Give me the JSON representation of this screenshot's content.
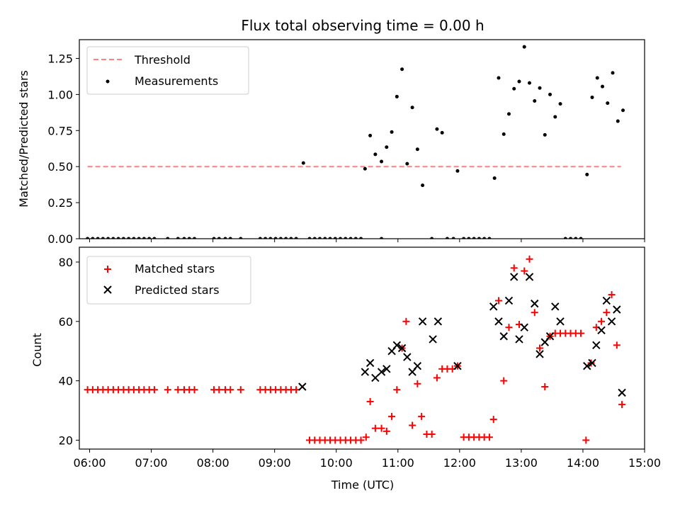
{
  "chart_data": [
    {
      "type": "scatter",
      "title": "Flux total observing time = 0.00 h",
      "xlabel": "",
      "ylabel": "Matched/Predicted stars",
      "xlim": [
        "05:50",
        "15:00"
      ],
      "ylim": [
        0,
        1.38
      ],
      "xticks": [
        "06:00",
        "07:00",
        "08:00",
        "09:00",
        "10:00",
        "11:00",
        "12:00",
        "13:00",
        "14:00",
        "15:00"
      ],
      "yticks": [
        "0.00",
        "0.25",
        "0.50",
        "0.75",
        "1.00",
        "1.25"
      ],
      "legend_position": "upper-left",
      "series": [
        {
          "name": "Threshold",
          "kind": "dashed-line",
          "color": "#ff8080",
          "x": [
            "05:58",
            "14:37"
          ],
          "y": [
            0.5,
            0.5
          ]
        },
        {
          "name": "Measurements",
          "kind": "points",
          "color": "#000000",
          "points": [
            [
              "05:58",
              0
            ],
            [
              "06:03",
              0
            ],
            [
              "06:08",
              0
            ],
            [
              "06:13",
              0
            ],
            [
              "06:18",
              0
            ],
            [
              "06:23",
              0
            ],
            [
              "06:28",
              0
            ],
            [
              "06:33",
              0
            ],
            [
              "06:38",
              0
            ],
            [
              "06:43",
              0
            ],
            [
              "06:48",
              0
            ],
            [
              "06:53",
              0
            ],
            [
              "06:58",
              0
            ],
            [
              "07:03",
              0
            ],
            [
              "07:16",
              0
            ],
            [
              "07:26",
              0
            ],
            [
              "07:32",
              0
            ],
            [
              "07:37",
              0
            ],
            [
              "07:42",
              0
            ],
            [
              "08:01",
              0
            ],
            [
              "08:06",
              0
            ],
            [
              "08:12",
              0
            ],
            [
              "08:17",
              0
            ],
            [
              "08:27",
              0
            ],
            [
              "08:46",
              0
            ],
            [
              "08:51",
              0
            ],
            [
              "08:56",
              0
            ],
            [
              "09:01",
              0
            ],
            [
              "09:06",
              0
            ],
            [
              "09:11",
              0
            ],
            [
              "09:16",
              0
            ],
            [
              "09:21",
              0
            ],
            [
              "09:34",
              0
            ],
            [
              "09:39",
              0
            ],
            [
              "09:44",
              0
            ],
            [
              "09:49",
              0
            ],
            [
              "09:54",
              0
            ],
            [
              "09:59",
              0
            ],
            [
              "10:04",
              0
            ],
            [
              "10:09",
              0
            ],
            [
              "10:14",
              0
            ],
            [
              "10:19",
              0
            ],
            [
              "10:24",
              0
            ],
            [
              "10:44",
              0
            ],
            [
              "11:33",
              0
            ],
            [
              "11:48",
              0
            ],
            [
              "11:54",
              0
            ],
            [
              "12:04",
              0
            ],
            [
              "12:09",
              0
            ],
            [
              "12:14",
              0
            ],
            [
              "12:19",
              0
            ],
            [
              "12:24",
              0
            ],
            [
              "12:29",
              0
            ],
            [
              "13:43",
              0
            ],
            [
              "13:48",
              0
            ],
            [
              "13:53",
              0
            ],
            [
              "13:58",
              0
            ],
            [
              "09:28",
              0.525
            ],
            [
              "10:28",
              0.485
            ],
            [
              "10:33",
              0.715
            ],
            [
              "10:38",
              0.585
            ],
            [
              "10:44",
              0.535
            ],
            [
              "10:49",
              0.635
            ],
            [
              "10:54",
              0.74
            ],
            [
              "10:59",
              0.985
            ],
            [
              "11:04",
              1.175
            ],
            [
              "11:09",
              0.52
            ],
            [
              "11:14",
              0.91
            ],
            [
              "11:19",
              0.62
            ],
            [
              "11:24",
              0.37
            ],
            [
              "11:38",
              0.76
            ],
            [
              "11:43",
              0.735
            ],
            [
              "11:58",
              0.47
            ],
            [
              "12:34",
              0.42
            ],
            [
              "12:38",
              1.115
            ],
            [
              "12:43",
              0.725
            ],
            [
              "12:48",
              0.865
            ],
            [
              "12:53",
              1.04
            ],
            [
              "12:58",
              1.09
            ],
            [
              "13:03",
              1.33
            ],
            [
              "13:08",
              1.08
            ],
            [
              "13:13",
              0.955
            ],
            [
              "13:18",
              1.045
            ],
            [
              "13:23",
              0.72
            ],
            [
              "13:28",
              1.0
            ],
            [
              "13:33",
              0.845
            ],
            [
              "13:38",
              0.935
            ],
            [
              "14:04",
              0.445
            ],
            [
              "14:09",
              0.98
            ],
            [
              "14:14",
              1.115
            ],
            [
              "14:19",
              1.055
            ],
            [
              "14:24",
              0.94
            ],
            [
              "14:29",
              1.15
            ],
            [
              "14:34",
              0.815
            ],
            [
              "14:39",
              0.89
            ]
          ]
        }
      ]
    },
    {
      "type": "scatter",
      "title": "",
      "xlabel": "Time (UTC)",
      "ylabel": "Count",
      "xlim": [
        "05:50",
        "15:00"
      ],
      "ylim": [
        17,
        85
      ],
      "xticks": [
        "06:00",
        "07:00",
        "08:00",
        "09:00",
        "10:00",
        "11:00",
        "12:00",
        "13:00",
        "14:00",
        "15:00"
      ],
      "yticks": [
        "20",
        "40",
        "60",
        "80"
      ],
      "legend_position": "upper-left",
      "series": [
        {
          "name": "Matched stars",
          "marker": "plus",
          "color": "#ff0000",
          "points": [
            [
              "05:58",
              37
            ],
            [
              "06:03",
              37
            ],
            [
              "06:08",
              37
            ],
            [
              "06:13",
              37
            ],
            [
              "06:18",
              37
            ],
            [
              "06:23",
              37
            ],
            [
              "06:28",
              37
            ],
            [
              "06:33",
              37
            ],
            [
              "06:38",
              37
            ],
            [
              "06:43",
              37
            ],
            [
              "06:48",
              37
            ],
            [
              "06:53",
              37
            ],
            [
              "06:58",
              37
            ],
            [
              "07:03",
              37
            ],
            [
              "07:16",
              37
            ],
            [
              "07:26",
              37
            ],
            [
              "07:32",
              37
            ],
            [
              "07:37",
              37
            ],
            [
              "07:42",
              37
            ],
            [
              "08:01",
              37
            ],
            [
              "08:06",
              37
            ],
            [
              "08:12",
              37
            ],
            [
              "08:17",
              37
            ],
            [
              "08:27",
              37
            ],
            [
              "08:46",
              37
            ],
            [
              "08:51",
              37
            ],
            [
              "08:56",
              37
            ],
            [
              "09:01",
              37
            ],
            [
              "09:06",
              37
            ],
            [
              "09:11",
              37
            ],
            [
              "09:16",
              37
            ],
            [
              "09:21",
              37
            ],
            [
              "09:34",
              20
            ],
            [
              "09:39",
              20
            ],
            [
              "09:44",
              20
            ],
            [
              "09:49",
              20
            ],
            [
              "09:54",
              20
            ],
            [
              "09:59",
              20
            ],
            [
              "10:04",
              20
            ],
            [
              "10:09",
              20
            ],
            [
              "10:14",
              20
            ],
            [
              "10:19",
              20
            ],
            [
              "10:24",
              20
            ],
            [
              "10:29",
              21
            ],
            [
              "10:33",
              33
            ],
            [
              "10:38",
              24
            ],
            [
              "10:44",
              24
            ],
            [
              "10:49",
              23
            ],
            [
              "10:54",
              28
            ],
            [
              "10:59",
              37
            ],
            [
              "11:04",
              51
            ],
            [
              "11:08",
              60
            ],
            [
              "11:14",
              25
            ],
            [
              "11:19",
              39
            ],
            [
              "11:23",
              28
            ],
            [
              "11:28",
              22
            ],
            [
              "11:33",
              22
            ],
            [
              "11:38",
              41
            ],
            [
              "11:43",
              44
            ],
            [
              "11:48",
              44
            ],
            [
              "11:53",
              44
            ],
            [
              "11:58",
              45
            ],
            [
              "12:04",
              21
            ],
            [
              "12:09",
              21
            ],
            [
              "12:14",
              21
            ],
            [
              "12:19",
              21
            ],
            [
              "12:24",
              21
            ],
            [
              "12:29",
              21
            ],
            [
              "12:33",
              27
            ],
            [
              "12:38",
              67
            ],
            [
              "12:43",
              40
            ],
            [
              "12:48",
              58
            ],
            [
              "12:53",
              78
            ],
            [
              "12:58",
              59
            ],
            [
              "13:03",
              77
            ],
            [
              "13:08",
              81
            ],
            [
              "13:13",
              63
            ],
            [
              "13:18",
              51
            ],
            [
              "13:23",
              38
            ],
            [
              "13:28",
              55
            ],
            [
              "13:33",
              56
            ],
            [
              "13:38",
              56
            ],
            [
              "13:43",
              56
            ],
            [
              "13:48",
              56
            ],
            [
              "13:53",
              56
            ],
            [
              "13:58",
              56
            ],
            [
              "14:03",
              20
            ],
            [
              "14:08",
              46
            ],
            [
              "14:13",
              58
            ],
            [
              "14:18",
              60
            ],
            [
              "14:23",
              63
            ],
            [
              "14:28",
              69
            ],
            [
              "14:33",
              52
            ],
            [
              "14:38",
              32
            ]
          ]
        },
        {
          "name": "Predicted stars",
          "marker": "x",
          "color": "#000000",
          "points": [
            [
              "09:27",
              38
            ],
            [
              "10:28",
              43
            ],
            [
              "10:33",
              46
            ],
            [
              "10:38",
              41
            ],
            [
              "10:44",
              43
            ],
            [
              "10:49",
              44
            ],
            [
              "10:54",
              50
            ],
            [
              "10:59",
              52
            ],
            [
              "11:04",
              51
            ],
            [
              "11:09",
              48
            ],
            [
              "11:14",
              43
            ],
            [
              "11:19",
              45
            ],
            [
              "11:24",
              60
            ],
            [
              "11:34",
              54
            ],
            [
              "11:39",
              60
            ],
            [
              "11:58",
              45
            ],
            [
              "12:33",
              65
            ],
            [
              "12:38",
              60
            ],
            [
              "12:43",
              55
            ],
            [
              "12:48",
              67
            ],
            [
              "12:53",
              75
            ],
            [
              "12:58",
              54
            ],
            [
              "13:03",
              58
            ],
            [
              "13:08",
              75
            ],
            [
              "13:13",
              66
            ],
            [
              "13:18",
              49
            ],
            [
              "13:23",
              53
            ],
            [
              "13:28",
              55
            ],
            [
              "13:33",
              65
            ],
            [
              "13:38",
              60
            ],
            [
              "14:04",
              45
            ],
            [
              "14:09",
              46
            ],
            [
              "14:13",
              52
            ],
            [
              "14:18",
              57
            ],
            [
              "14:23",
              67
            ],
            [
              "14:28",
              60
            ],
            [
              "14:33",
              64
            ],
            [
              "14:38",
              36
            ]
          ]
        }
      ]
    }
  ]
}
